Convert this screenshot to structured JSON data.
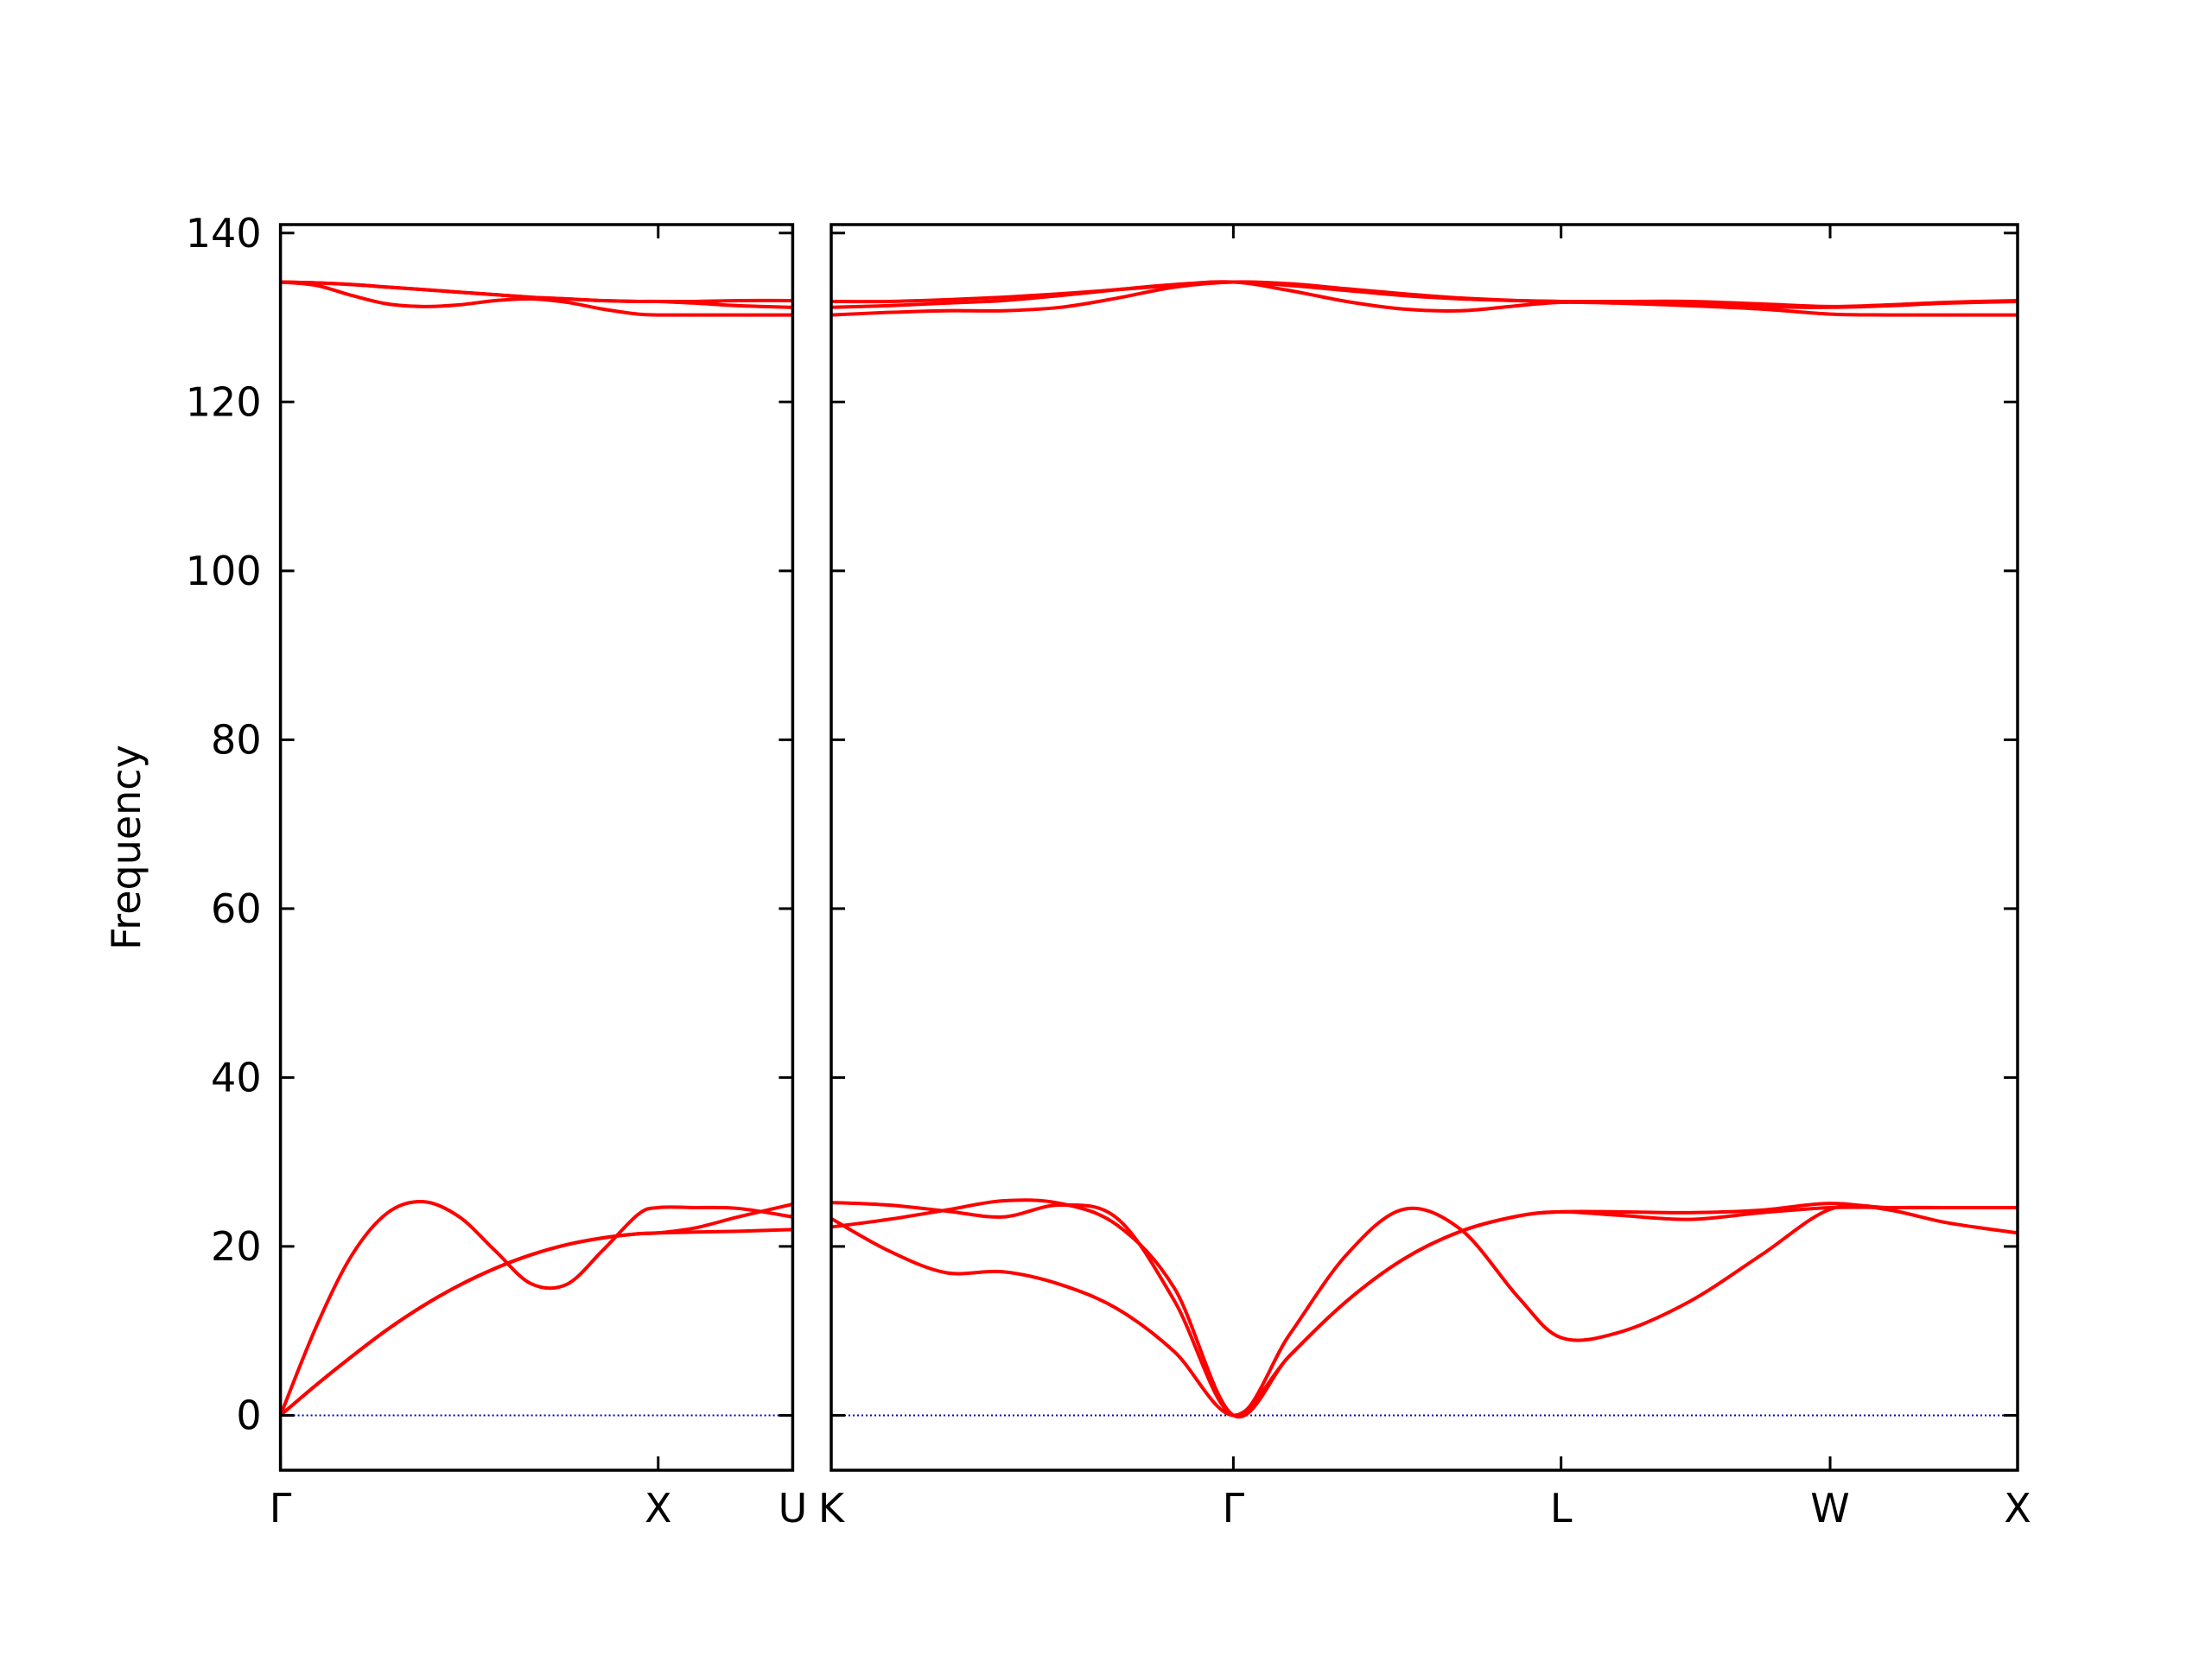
{
  "chart_data": [
    {
      "type": "line",
      "ylabel": "Frequency",
      "x": [
        0,
        0.25,
        0.5,
        0.75,
        1.0,
        1.25,
        1.5,
        1.75,
        2.0,
        2.25,
        2.5,
        2.64,
        2.9,
        3.2,
        3.58
      ],
      "xlim": [
        0,
        3.58
      ],
      "xticks": [
        {
          "value": 0,
          "label": "Γ"
        },
        {
          "value": 2.64,
          "label": "X"
        },
        {
          "value": 3.58,
          "label": "U"
        }
      ],
      "ylim": [
        -6.5,
        141
      ],
      "yticks": [
        0,
        20,
        40,
        60,
        80,
        100,
        120,
        140
      ],
      "hline": {
        "value": 0,
        "color": "#0000cc"
      },
      "series": [
        {
          "color": "#ff0000",
          "values": [
            0,
            3.6,
            7,
            10.2,
            13,
            15.4,
            17.4,
            19,
            20.2,
            21,
            21.5,
            21.6,
            21.7,
            21.8,
            22.0
          ]
        },
        {
          "color": "#ff0000",
          "values": [
            0,
            3.6,
            7,
            10.2,
            13,
            15.4,
            17.4,
            19,
            20.2,
            21,
            21.5,
            21.6,
            22.2,
            23.5,
            25.0
          ]
        },
        {
          "color": "#ff0000",
          "values": [
            0,
            10.5,
            19,
            24,
            25.3,
            23.5,
            19.5,
            15.6,
            15.5,
            19.5,
            23.8,
            24.6,
            24.6,
            24.5,
            23.5
          ]
        },
        {
          "color": "#ff0000",
          "values": [
            134.2,
            134.1,
            133.9,
            133.6,
            133.3,
            133.0,
            132.7,
            132.4,
            132.2,
            132.0,
            131.9,
            131.9,
            131.9,
            132.0,
            132.0
          ]
        },
        {
          "color": "#ff0000",
          "values": [
            134.2,
            133.8,
            132.6,
            131.6,
            131.3,
            131.5,
            132.0,
            132.2,
            131.8,
            131.0,
            130.4,
            130.3,
            130.3,
            130.3,
            130.3
          ]
        },
        {
          "color": "#ff0000",
          "values": [
            134.2,
            134.1,
            133.9,
            133.6,
            133.3,
            133.0,
            132.7,
            132.4,
            132.2,
            132.0,
            131.9,
            131.9,
            131.7,
            131.4,
            131.2
          ]
        }
      ]
    },
    {
      "type": "line",
      "x": [
        0,
        0.4,
        0.8,
        1.2,
        1.6,
        2.0,
        2.4,
        2.81,
        3.2,
        3.6,
        4.0,
        4.4,
        4.8,
        5.1,
        5.5,
        6.0,
        6.5,
        6.98,
        7.4,
        7.8,
        8.29
      ],
      "xlim": [
        0,
        8.29
      ],
      "xticks": [
        {
          "value": 0,
          "label": "K"
        },
        {
          "value": 2.81,
          "label": "Γ"
        },
        {
          "value": 5.1,
          "label": "L"
        },
        {
          "value": 6.98,
          "label": "W"
        },
        {
          "value": 8.29,
          "label": "X"
        }
      ],
      "ylim": [
        -6.5,
        141
      ],
      "yticks": [
        0,
        20,
        40,
        60,
        80,
        100,
        120,
        140
      ],
      "hline": {
        "value": 0,
        "color": "#0000cc"
      },
      "series": [
        {
          "color": "#ff0000",
          "values": [
            23.3,
            19.5,
            16.9,
            17.0,
            15.5,
            12.6,
            7.5,
            0,
            7,
            13.5,
            18.5,
            21.8,
            23.6,
            24.1,
            24.1,
            24.0,
            24.3,
            25.1,
            24.3,
            22.8,
            21.6
          ]
        },
        {
          "color": "#ff0000",
          "values": [
            22.3,
            23.2,
            24.3,
            25.4,
            25.1,
            22.5,
            15,
            0,
            7,
            13.5,
            18.5,
            21.8,
            23.6,
            24.1,
            23.7,
            23.2,
            24.0,
            24.6,
            24.6,
            24.6,
            24.6
          ]
        },
        {
          "color": "#ff0000",
          "values": [
            25.2,
            24.9,
            24.2,
            23.5,
            24.9,
            23.3,
            13.5,
            0,
            9.5,
            19,
            24.4,
            22,
            14,
            9.2,
            9.8,
            13.5,
            19,
            24.4,
            24.6,
            24.6,
            24.6
          ]
        },
        {
          "color": "#ff0000",
          "values": [
            131.9,
            131.9,
            132.1,
            132.4,
            132.8,
            133.3,
            133.8,
            134.2,
            133.8,
            133.2,
            132.6,
            132.2,
            132.0,
            131.9,
            131.9,
            131.9,
            131.6,
            131.3,
            131.5,
            131.8,
            132.0
          ]
        },
        {
          "color": "#ff0000",
          "values": [
            131.2,
            131.4,
            131.7,
            132.0,
            132.6,
            133.3,
            133.9,
            134.2,
            133.2,
            131.9,
            131.0,
            130.8,
            131.4,
            131.8,
            131.7,
            131.4,
            131.0,
            130.4,
            130.3,
            130.3,
            130.3
          ]
        },
        {
          "color": "#ff0000",
          "values": [
            130.3,
            130.6,
            130.8,
            130.8,
            131.2,
            132.3,
            133.6,
            134.2,
            134.0,
            133.4,
            132.8,
            132.3,
            132.0,
            131.9,
            131.8,
            131.6,
            131.3,
            131.2,
            131.4,
            131.7,
            131.9
          ]
        }
      ]
    }
  ]
}
